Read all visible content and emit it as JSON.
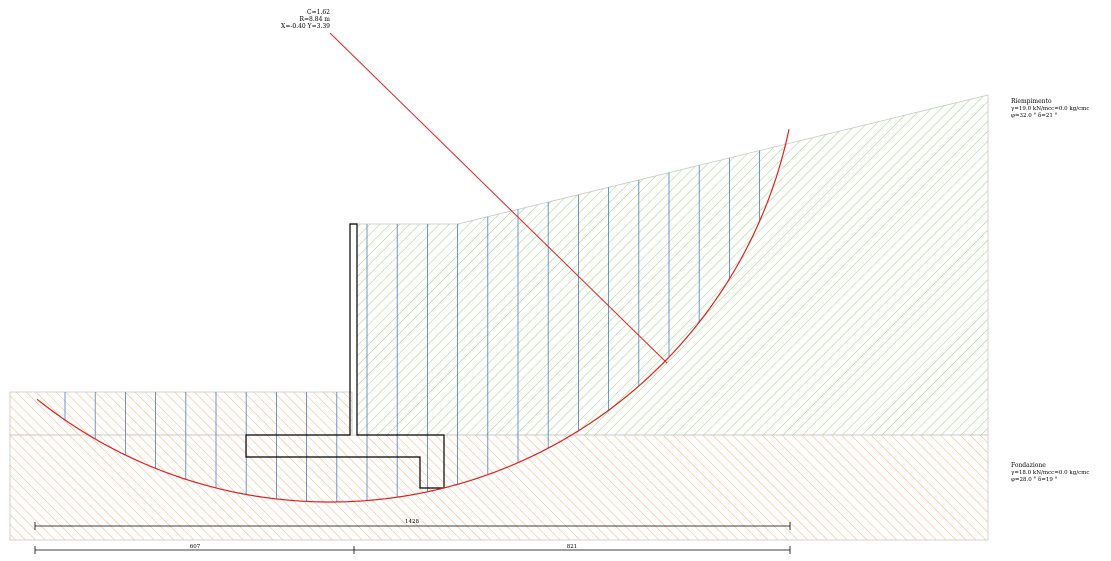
{
  "circle_info": {
    "line1": "C=1.62",
    "line2": "R=8.84 m",
    "line3": "X=-0.40  Y=3.39"
  },
  "soils": {
    "fill": {
      "name": "Riempimento",
      "props1": "γ=19.0 kN/mcc=0.0 kg/cmc",
      "props2": "φ=32.0 °  δ=21 °",
      "hatch_color": "#9fd27a"
    },
    "foundation": {
      "name": "Fondazione",
      "props1": "γ=18.0 kN/mcc=0.0 kg/cmc",
      "props2": "φ=28.0 °  δ=19 °",
      "hatch_color": "#f5b47a"
    }
  },
  "colors": {
    "slip_circle": "#e02020",
    "slices": "#4a7fc0",
    "wall": "#000000",
    "boundary": "#c8c8c8"
  },
  "dimensions": {
    "total": "1428",
    "left": "607",
    "right": "821"
  }
}
